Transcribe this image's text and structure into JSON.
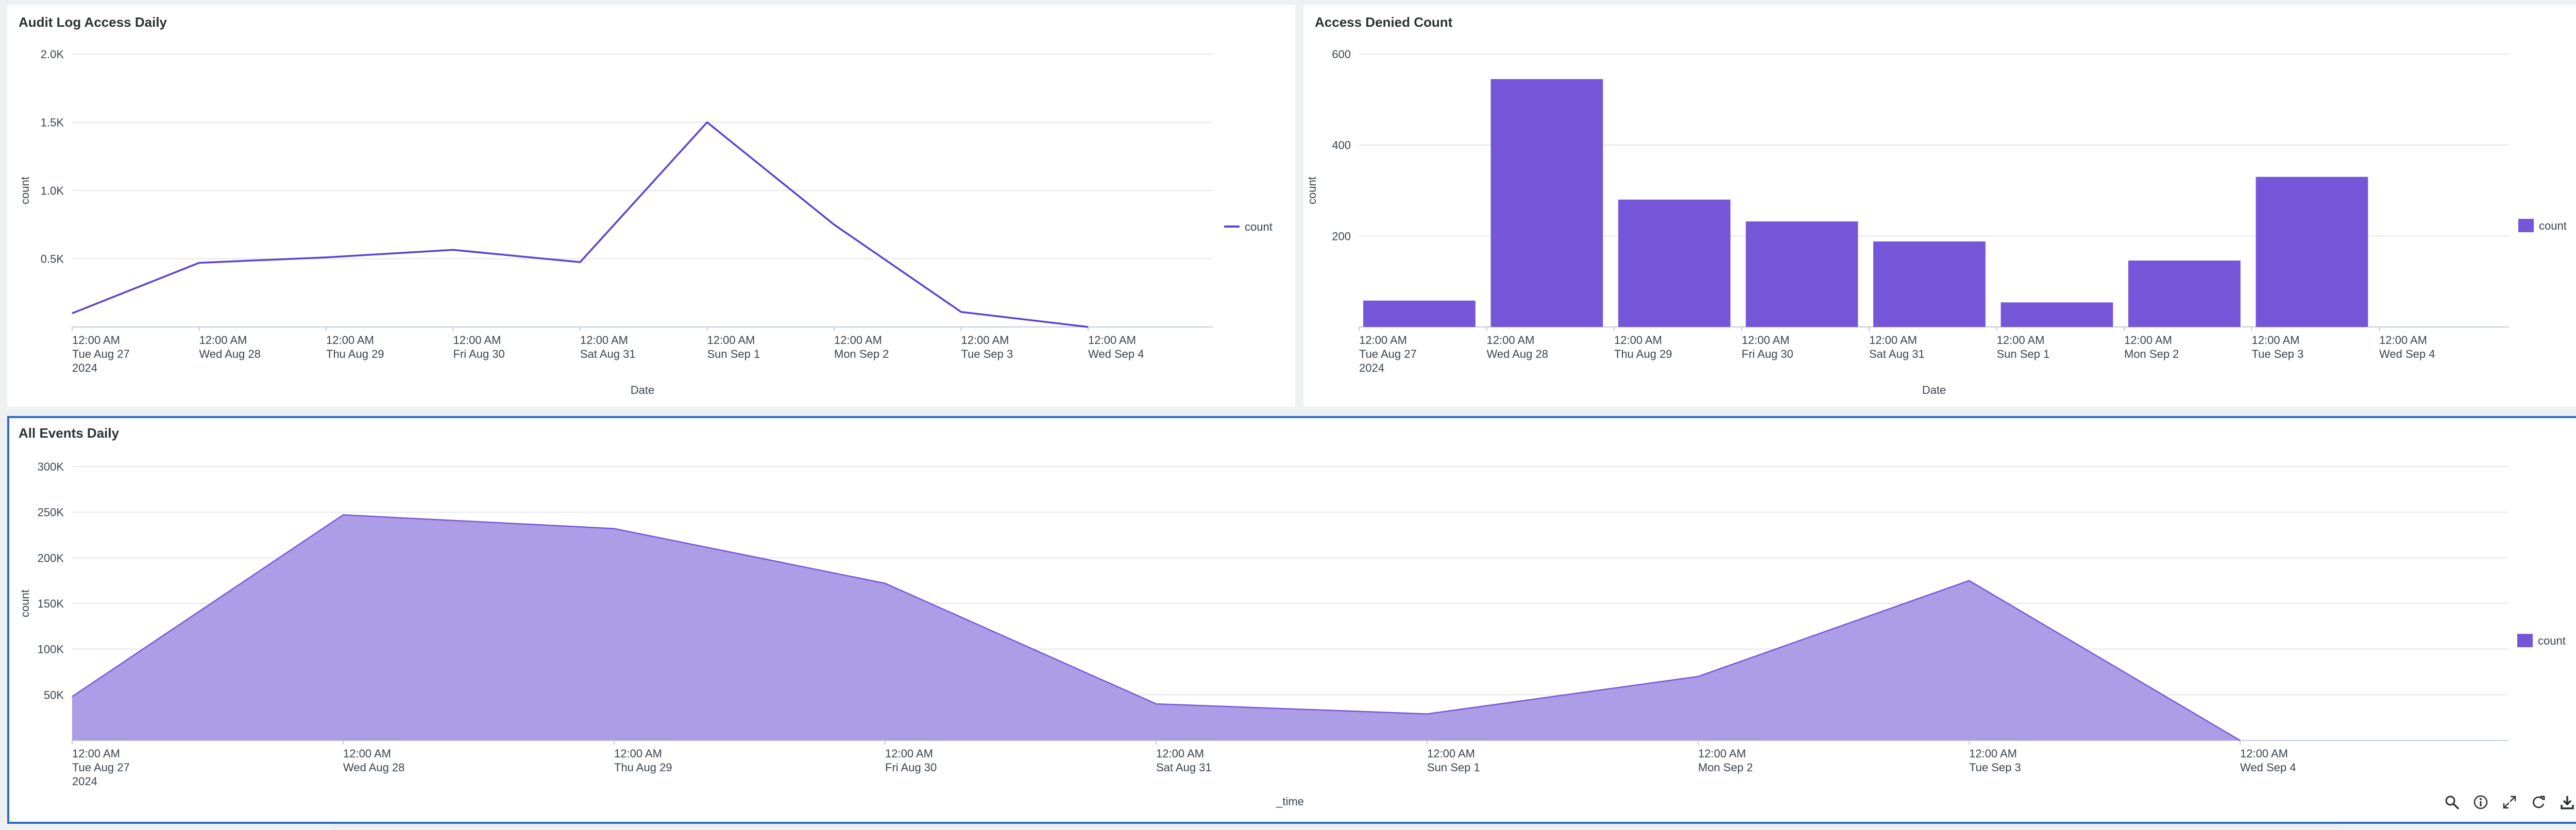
{
  "panels": [
    {
      "id": "audit-log",
      "title": "Audit Log Access Daily",
      "chart_data": {
        "type": "line",
        "x": [
          "12:00 AM|Tue Aug 27|2024",
          "12:00 AM|Wed Aug 28",
          "12:00 AM|Thu Aug 29",
          "12:00 AM|Fri Aug 30",
          "12:00 AM|Sat Aug 31",
          "12:00 AM|Sun Sep 1",
          "12:00 AM|Mon Sep 2",
          "12:00 AM|Tue Sep 3",
          "12:00 AM|Wed Sep 4"
        ],
        "series": [
          {
            "name": "count",
            "values": [
              100,
              470,
              510,
              565,
              475,
              1500,
              750,
              110,
              0
            ]
          }
        ],
        "xlabel": "Date",
        "ylabel": "count",
        "ylim": [
          0,
          2000
        ],
        "yticks": [
          {
            "v": 500,
            "label": "0.5K"
          },
          {
            "v": 1000,
            "label": "1.0K"
          },
          {
            "v": 1500,
            "label": "1.5K"
          },
          {
            "v": 2000,
            "label": "2.0K"
          }
        ],
        "grid": true,
        "legend": "right",
        "color": "#5a3fd6"
      }
    },
    {
      "id": "access-denied",
      "title": "Access Denied Count",
      "chart_data": {
        "type": "bar",
        "categories": [
          "12:00 AM|Tue Aug 27|2024",
          "12:00 AM|Wed Aug 28",
          "12:00 AM|Thu Aug 29",
          "12:00 AM|Fri Aug 30",
          "12:00 AM|Sat Aug 31",
          "12:00 AM|Sun Sep 1",
          "12:00 AM|Mon Sep 2",
          "12:00 AM|Tue Sep 3",
          "12:00 AM|Wed Sep 4"
        ],
        "series": [
          {
            "name": "count",
            "values": [
              58,
              545,
              280,
              232,
              188,
              54,
              146,
              330,
              0
            ]
          }
        ],
        "xlabel": "Date",
        "ylabel": "count",
        "ylim": [
          0,
          600
        ],
        "yticks": [
          {
            "v": 200,
            "label": "200"
          },
          {
            "v": 400,
            "label": "400"
          },
          {
            "v": 600,
            "label": "600"
          }
        ],
        "grid": true,
        "legend": "right",
        "color": "#7656d8"
      }
    },
    {
      "id": "all-events",
      "title": "All Events Daily",
      "chart_data": {
        "type": "area",
        "x": [
          "12:00 AM|Tue Aug 27|2024",
          "12:00 AM|Wed Aug 28",
          "12:00 AM|Thu Aug 29",
          "12:00 AM|Fri Aug 30",
          "12:00 AM|Sat Aug 31",
          "12:00 AM|Sun Sep 1",
          "12:00 AM|Mon Sep 2",
          "12:00 AM|Tue Sep 3",
          "12:00 AM|Wed Sep 4"
        ],
        "series": [
          {
            "name": "count",
            "values": [
              48000,
              247000,
              232000,
              172000,
              40000,
              29000,
              70000,
              175000,
              0
            ]
          }
        ],
        "xlabel": "_time",
        "ylabel": "count",
        "ylim": [
          0,
          300000
        ],
        "yticks": [
          {
            "v": 50000,
            "label": "50K"
          },
          {
            "v": 100000,
            "label": "100K"
          },
          {
            "v": 150000,
            "label": "150K"
          },
          {
            "v": 200000,
            "label": "200K"
          },
          {
            "v": 250000,
            "label": "250K"
          },
          {
            "v": 300000,
            "label": "300K"
          }
        ],
        "grid": true,
        "legend": "right",
        "color": "#7656d8",
        "fill": "#ad9ce6"
      }
    }
  ],
  "toolbar": {
    "icons": [
      "search-icon",
      "info-icon",
      "expand-icon",
      "refresh-icon",
      "download-icon"
    ]
  }
}
